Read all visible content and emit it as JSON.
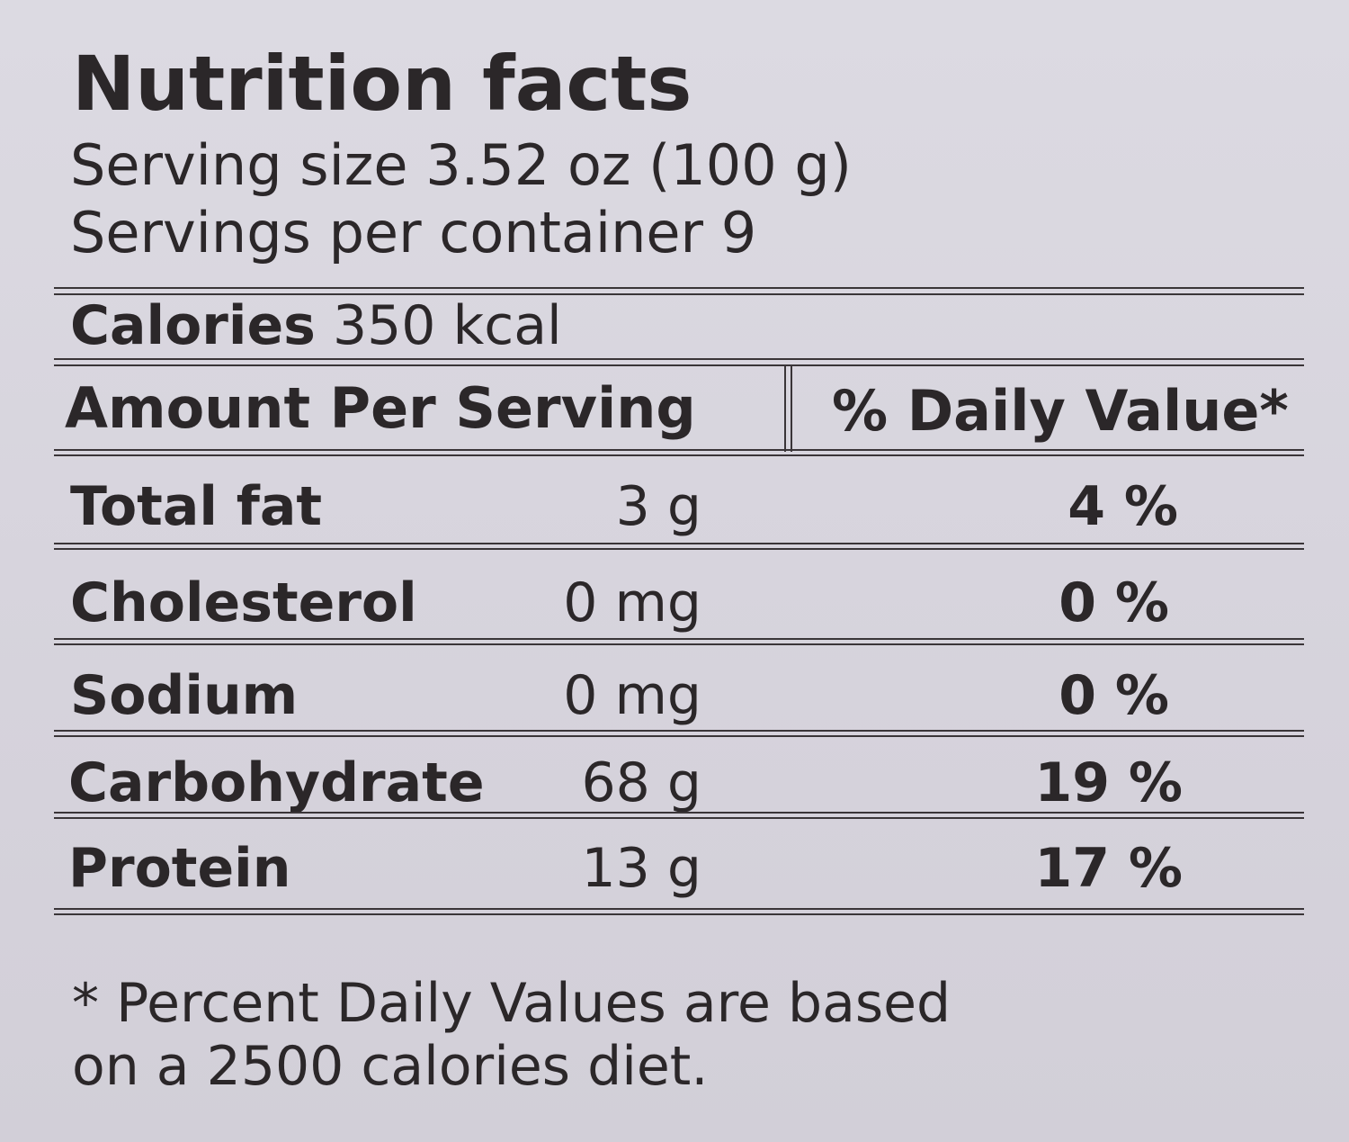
{
  "title": "Nutrition facts",
  "serving_size": "Serving size 3.52 oz (100 g)",
  "servings_per_container": "Servings per container 9",
  "calories": {
    "label": "Calories",
    "value": "350 kcal"
  },
  "table": {
    "header": [
      "Amount Per Serving",
      "% Daily Value*"
    ],
    "rows": [
      [
        "Total fat",
        "3 g",
        "4 %"
      ],
      [
        "Cholesterol",
        "0 mg",
        "0 %"
      ],
      [
        "Sodium",
        "0 mg",
        "0 %"
      ],
      [
        "Carbohydrate",
        "68 g",
        "19 %"
      ],
      [
        "Protein",
        "13 g",
        "17 %"
      ]
    ]
  },
  "footnote": [
    "* Percent Daily Values are based",
    "on a 2500 calories diet."
  ]
}
